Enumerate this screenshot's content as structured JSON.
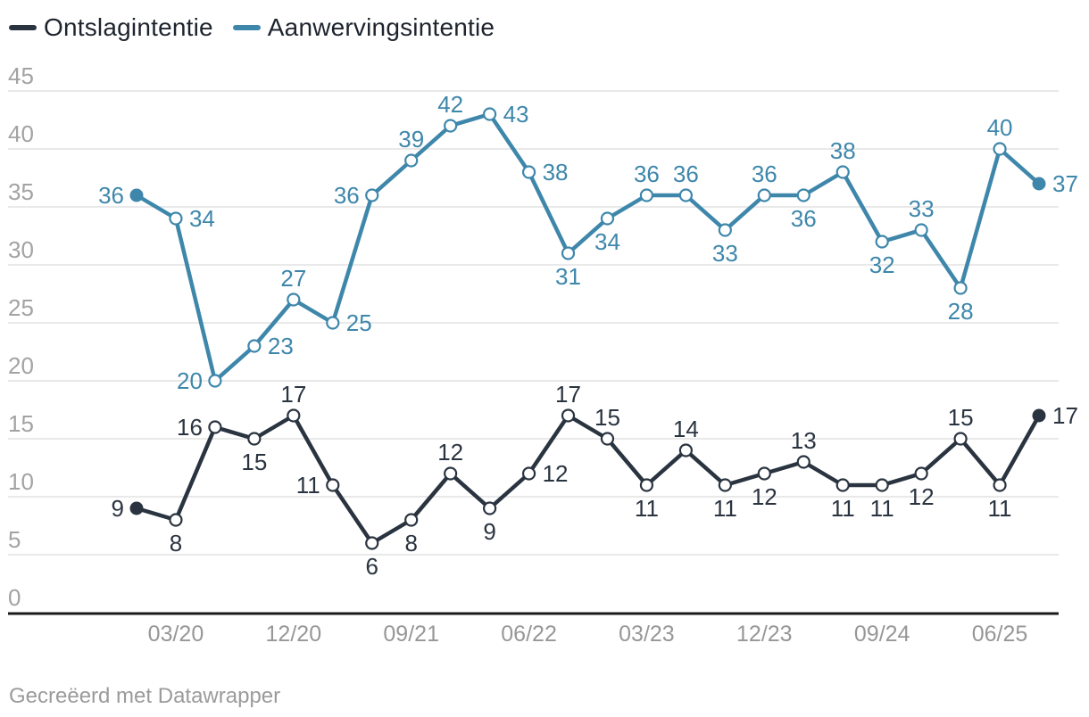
{
  "legend": {
    "items": [
      {
        "label": "Ontslagintentie",
        "color": "#2a3440"
      },
      {
        "label": "Aanwervingsintentie",
        "color": "#3e87ab"
      }
    ]
  },
  "footer": {
    "attribution": "Gecreëerd met Datawrapper"
  },
  "chart_data": {
    "type": "line",
    "title": "",
    "xlabel": "",
    "ylabel": "",
    "ylim": [
      0,
      45
    ],
    "ytick_step": 5,
    "grid": true,
    "legend_position": "top-left",
    "x_axis": {
      "labels": [
        "03/20",
        "12/20",
        "09/21",
        "06/22",
        "03/23",
        "12/23",
        "09/24",
        "06/25"
      ],
      "label_indices": [
        1,
        4,
        7,
        10,
        13,
        16,
        19,
        22
      ]
    },
    "series": [
      {
        "name": "Ontslagintentie",
        "color": "#2a3440",
        "values": [
          9,
          8,
          16,
          15,
          17,
          11,
          6,
          8,
          12,
          9,
          12,
          17,
          15,
          11,
          14,
          11,
          12,
          13,
          11,
          11,
          12,
          15,
          11,
          17
        ],
        "label_positions": [
          "left",
          "below",
          "left",
          "below",
          "above",
          "left",
          "below",
          "below",
          "above",
          "below",
          "right",
          "above",
          "above",
          "below",
          "above",
          "below",
          "below",
          "above",
          "below",
          "below",
          "below",
          "above",
          "below",
          "right"
        ]
      },
      {
        "name": "Aanwervingsintentie",
        "color": "#3e87ab",
        "values": [
          36,
          34,
          20,
          23,
          27,
          25,
          36,
          39,
          42,
          43,
          38,
          31,
          34,
          36,
          36,
          33,
          36,
          36,
          38,
          32,
          33,
          28,
          40,
          37
        ],
        "label_positions": [
          "left",
          "right",
          "left",
          "right",
          "above",
          "right",
          "left",
          "above",
          "above",
          "right",
          "right",
          "below",
          "below",
          "above",
          "above",
          "below",
          "above",
          "below",
          "above",
          "below",
          "above",
          "below",
          "above",
          "right"
        ]
      }
    ]
  }
}
